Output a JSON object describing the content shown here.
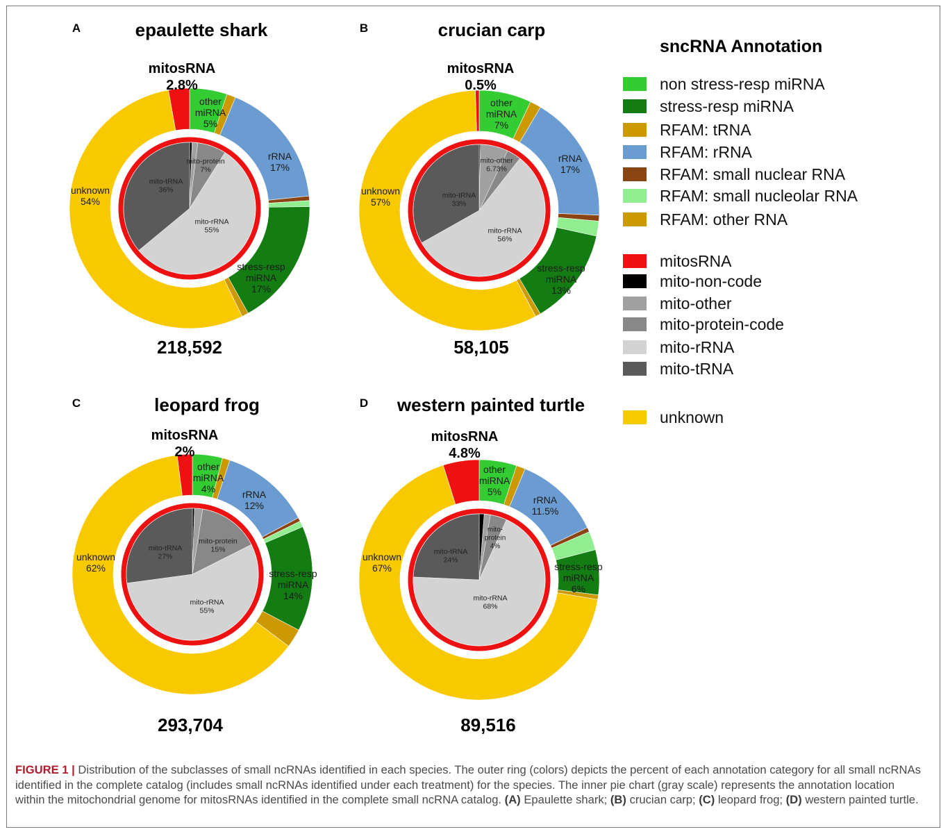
{
  "colors": {
    "non_stress_mirna": "#33cc33",
    "stress_mirna": "#137d13",
    "trna": "#cc9900",
    "rrna": "#6a9bd1",
    "snrna": "#8b4513",
    "snorna": "#90ee90",
    "other_rna": "#cc9900",
    "mitosrna": "#ee1111",
    "mito_non_code": "#000000",
    "mito_other": "#a0a0a0",
    "mito_protein": "#888888",
    "mito_rrna": "#d3d3d3",
    "mito_trna": "#5a5a5a",
    "unknown": "#f9c900"
  },
  "legend": {
    "title": "sncRNA Annotation",
    "items": [
      {
        "label": "non stress-resp miRNA",
        "color": "#33cc33"
      },
      {
        "label": "stress-resp miRNA",
        "color": "#137d13"
      },
      {
        "label": "RFAM: tRNA",
        "color": "#cc9900"
      },
      {
        "label": "RFAM: rRNA",
        "color": "#6a9bd1"
      },
      {
        "label": "RFAM: small nuclear RNA",
        "color": "#8b4513"
      },
      {
        "label": "RFAM: small nucleolar RNA",
        "color": "#90ee90"
      },
      {
        "label": "RFAM: other RNA",
        "color": "#cc9900"
      },
      {
        "label": "mitosRNA",
        "color": "#ee1111"
      },
      {
        "label": "mito-non-code",
        "color": "#000000"
      },
      {
        "label": "mito-other",
        "color": "#a0a0a0"
      },
      {
        "label": "mito-protein-code",
        "color": "#888888"
      },
      {
        "label": "mito-rRNA",
        "color": "#d3d3d3"
      },
      {
        "label": "mito-tRNA",
        "color": "#5a5a5a"
      },
      {
        "label": "unknown",
        "color": "#f9c900"
      }
    ]
  },
  "chart_data": [
    {
      "type": "pie",
      "panel": "A",
      "title": "epaulette shark",
      "total": "218,592",
      "mitosrna_label": "mitosRNA",
      "mitosrna_value": "2.8%",
      "outer": [
        {
          "key": "other_mirna",
          "label": "other\nmiRNA\n5%",
          "value": 5,
          "color": "#33cc33"
        },
        {
          "key": "trna",
          "label": "",
          "value": 1.2,
          "color": "#cc9900"
        },
        {
          "key": "rrna",
          "label": "rRNA\n17%",
          "value": 17,
          "color": "#6a9bd1"
        },
        {
          "key": "snrna",
          "label": "",
          "value": 0.6,
          "color": "#8b4513"
        },
        {
          "key": "snorna",
          "label": "",
          "value": 0.8,
          "color": "#90ee90"
        },
        {
          "key": "stress_mirna",
          "label": "stress-resp\nmiRNA\n17%",
          "value": 17,
          "color": "#137d13"
        },
        {
          "key": "other_rna",
          "label": "",
          "value": 0.9,
          "color": "#cc9900"
        },
        {
          "key": "unknown",
          "label": "unknown\n54%",
          "value": 54,
          "color": "#f9c900"
        },
        {
          "key": "mitosrna",
          "label": "",
          "value": 2.8,
          "color": "#ee1111"
        }
      ],
      "inner": [
        {
          "key": "mito_non_code",
          "label": "",
          "value": 0.6,
          "color": "#000000"
        },
        {
          "key": "mito_other",
          "label": "",
          "value": 1.4,
          "color": "#a0a0a0"
        },
        {
          "key": "mito_protein",
          "label": "mito-protein\n7%",
          "value": 7,
          "color": "#888888"
        },
        {
          "key": "mito_rrna",
          "label": "mito-rRNA\n55%",
          "value": 55,
          "color": "#d3d3d3"
        },
        {
          "key": "mito_trna",
          "label": "mito-tRNA\n36%",
          "value": 36,
          "color": "#5a5a5a"
        }
      ]
    },
    {
      "type": "pie",
      "panel": "B",
      "title": "crucian carp",
      "total": "58,105",
      "mitosrna_label": "mitosRNA",
      "mitosrna_value": "0.5%",
      "outer": [
        {
          "key": "other_mirna",
          "label": "other\nmiRNA\n7%",
          "value": 7,
          "color": "#33cc33"
        },
        {
          "key": "trna",
          "label": "",
          "value": 1.5,
          "color": "#cc9900"
        },
        {
          "key": "rrna",
          "label": "rRNA\n17%",
          "value": 17,
          "color": "#6a9bd1"
        },
        {
          "key": "snrna",
          "label": "",
          "value": 0.8,
          "color": "#8b4513"
        },
        {
          "key": "snorna",
          "label": "",
          "value": 2,
          "color": "#90ee90"
        },
        {
          "key": "stress_mirna",
          "label": "stress-resp\nmiRNA\n13%",
          "value": 13,
          "color": "#137d13"
        },
        {
          "key": "other_rna",
          "label": "",
          "value": 0.7,
          "color": "#cc9900"
        },
        {
          "key": "unknown",
          "label": "unknown\n57%",
          "value": 57,
          "color": "#f9c900"
        },
        {
          "key": "mitosrna",
          "label": "",
          "value": 0.5,
          "color": "#ee1111"
        }
      ],
      "inner": [
        {
          "key": "mito_non_code",
          "label": "",
          "value": 0.3,
          "color": "#000000"
        },
        {
          "key": "mito_other",
          "label": "mito-other\n6.73%",
          "value": 6.73,
          "color": "#a0a0a0"
        },
        {
          "key": "mito_protein",
          "label": "",
          "value": 3.5,
          "color": "#888888"
        },
        {
          "key": "mito_rrna",
          "label": "mito-rRNA\n56%",
          "value": 56,
          "color": "#d3d3d3"
        },
        {
          "key": "mito_trna",
          "label": "mito-tRNA\n33%",
          "value": 33,
          "color": "#5a5a5a"
        }
      ]
    },
    {
      "type": "pie",
      "panel": "C",
      "title": "leopard frog",
      "total": "293,704",
      "mitosrna_label": "mitosRNA",
      "mitosrna_value": "2%",
      "outer": [
        {
          "key": "other_mirna",
          "label": "other\nmiRNA\n4%",
          "value": 4,
          "color": "#33cc33"
        },
        {
          "key": "trna",
          "label": "",
          "value": 1,
          "color": "#cc9900"
        },
        {
          "key": "rrna",
          "label": "rRNA\n12%",
          "value": 12,
          "color": "#6a9bd1"
        },
        {
          "key": "snrna",
          "label": "",
          "value": 0.5,
          "color": "#8b4513"
        },
        {
          "key": "snorna",
          "label": "",
          "value": 0.8,
          "color": "#90ee90"
        },
        {
          "key": "stress_mirna",
          "label": "stress-resp\nmiRNA\n14%",
          "value": 14,
          "color": "#137d13"
        },
        {
          "key": "other_rna",
          "label": "",
          "value": 2.5,
          "color": "#cc9900"
        },
        {
          "key": "unknown",
          "label": "unknown\n62%",
          "value": 62,
          "color": "#f9c900"
        },
        {
          "key": "mitosrna",
          "label": "",
          "value": 2,
          "color": "#ee1111"
        }
      ],
      "inner": [
        {
          "key": "mito_non_code",
          "label": "",
          "value": 0.5,
          "color": "#000000"
        },
        {
          "key": "mito_other",
          "label": "",
          "value": 2,
          "color": "#a0a0a0"
        },
        {
          "key": "mito_protein",
          "label": "mito-protein\n15%",
          "value": 15,
          "color": "#888888"
        },
        {
          "key": "mito_rrna",
          "label": "mito-rRNA\n55%",
          "value": 55,
          "color": "#d3d3d3"
        },
        {
          "key": "mito_trna",
          "label": "mito-tRNA\n27%",
          "value": 27,
          "color": "#5a5a5a"
        }
      ]
    },
    {
      "type": "pie",
      "panel": "D",
      "title": "western painted turtle",
      "total": "89,516",
      "mitosrna_label": "mitosRNA",
      "mitosrna_value": "4.8%",
      "outer": [
        {
          "key": "other_mirna",
          "label": "other\nmiRNA\n5%",
          "value": 5,
          "color": "#33cc33"
        },
        {
          "key": "trna",
          "label": "",
          "value": 1.2,
          "color": "#cc9900"
        },
        {
          "key": "rrna",
          "label": "rRNA\n11.5%",
          "value": 11.5,
          "color": "#6a9bd1"
        },
        {
          "key": "snrna",
          "label": "",
          "value": 0.6,
          "color": "#8b4513"
        },
        {
          "key": "snorna",
          "label": "",
          "value": 2.5,
          "color": "#90ee90"
        },
        {
          "key": "stress_mirna",
          "label": "stress-resp\nmiRNA\n6%",
          "value": 6,
          "color": "#137d13"
        },
        {
          "key": "other_rna",
          "label": "",
          "value": 0.6,
          "color": "#cc9900"
        },
        {
          "key": "unknown",
          "label": "unknown\n67%",
          "value": 67,
          "color": "#f9c900"
        },
        {
          "key": "mitosrna",
          "label": "",
          "value": 4.8,
          "color": "#ee1111"
        }
      ],
      "inner": [
        {
          "key": "mito_non_code",
          "label": "",
          "value": 1.2,
          "color": "#000000"
        },
        {
          "key": "mito_other",
          "label": "",
          "value": 1.5,
          "color": "#a0a0a0"
        },
        {
          "key": "mito_protein",
          "label": "mito-\nprotein\n4%",
          "value": 4,
          "color": "#888888"
        },
        {
          "key": "mito_rrna",
          "label": "mito-rRNA\n68%",
          "value": 68,
          "color": "#d3d3d3"
        },
        {
          "key": "mito_trna",
          "label": "mito-tRNA\n24%",
          "value": 24,
          "color": "#5a5a5a"
        }
      ]
    }
  ],
  "caption": {
    "figure_label": "FIGURE 1 |",
    "text_intro": "Distribution of the subclasses of small ncRNAs identified in each species. The outer ring (colors) depicts the percent of each annotation category for all small ncRNAs identified in the complete catalog (includes small ncRNAs identified under each treatment) for the species. The inner pie chart (gray scale) represents the annotation location within the mitochondrial genome for mitosRNAs identified in the complete small ncRNA catalog.",
    "a_label": "(A)",
    "a_text": "Epaulette shark;",
    "b_label": "(B)",
    "b_text": "crucian carp;",
    "c_label": "(C)",
    "c_text": "leopard frog;",
    "d_label": "(D)",
    "d_text": "western painted turtle."
  }
}
